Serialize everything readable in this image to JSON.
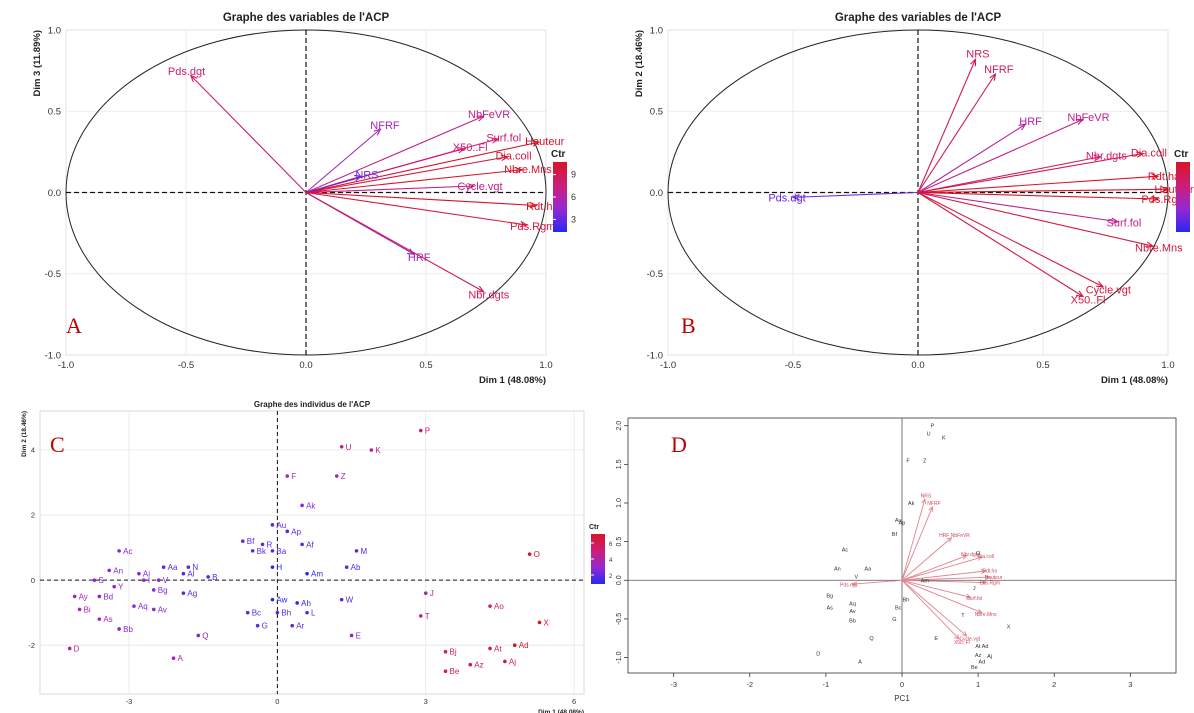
{
  "chart_data": [
    {
      "panel": "A",
      "type": "scatter",
      "subtype": "pca-variable-correlation-circle",
      "title": "Graphe des variables de l'ACP",
      "xlabel": "Dim 1 (48.08%)",
      "ylabel": "Dim 3 (11.89%)",
      "xlim": [
        -1.0,
        1.0
      ],
      "ylim": [
        -1.0,
        1.0
      ],
      "xticks": [
        "-1.0",
        "-0.5",
        "0.0",
        "0.5",
        "1.0"
      ],
      "yticks": [
        "-1.0",
        "-0.5",
        "0.0",
        "0.5",
        "1.0"
      ],
      "grid": true,
      "legend": {
        "title": "Ctr",
        "ticks": [
          "9",
          "6",
          "3"
        ],
        "placement": "right"
      },
      "points": [
        {
          "label": "Pds.dgt",
          "x": -0.48,
          "y": 0.72,
          "ctr": 7
        },
        {
          "label": "NbFeVR",
          "x": 0.74,
          "y": 0.47,
          "ctr": 6
        },
        {
          "label": "NFRF",
          "x": 0.31,
          "y": 0.39,
          "ctr": 4
        },
        {
          "label": "Surf.fol",
          "x": 0.8,
          "y": 0.33,
          "ctr": 7
        },
        {
          "label": "X50..Fl",
          "x": 0.66,
          "y": 0.27,
          "ctr": 7
        },
        {
          "label": "Hauteur",
          "x": 0.97,
          "y": 0.31,
          "ctr": 10
        },
        {
          "label": "Dia.coll",
          "x": 0.84,
          "y": 0.22,
          "ctr": 9
        },
        {
          "label": "NRS",
          "x": 0.23,
          "y": 0.1,
          "ctr": 2
        },
        {
          "label": "Nbre.Mns",
          "x": 0.9,
          "y": 0.14,
          "ctr": 10
        },
        {
          "label": "Cycle.vgt",
          "x": 0.7,
          "y": 0.04,
          "ctr": 6
        },
        {
          "label": "Rdt.ha",
          "x": 0.96,
          "y": -0.08,
          "ctr": 10
        },
        {
          "label": "Pds.Rgm",
          "x": 0.92,
          "y": -0.2,
          "ctr": 9
        },
        {
          "label": "HRF",
          "x": 0.45,
          "y": -0.38,
          "ctr": 4
        },
        {
          "label": "Nbr.dgts",
          "x": 0.74,
          "y": -0.61,
          "ctr": 8
        }
      ]
    },
    {
      "panel": "B",
      "type": "scatter",
      "subtype": "pca-variable-correlation-circle",
      "title": "Graphe des variables de l'ACP",
      "xlabel": "Dim 1 (48.08%)",
      "ylabel": "Dim 2 (18.46%)",
      "xlim": [
        -1.0,
        1.0
      ],
      "ylim": [
        -1.0,
        1.0
      ],
      "xticks": [
        "-1.0",
        "-0.5",
        "0.0",
        "0.5",
        "1.0"
      ],
      "yticks": [
        "-1.0",
        "-0.5",
        "0.0",
        "0.5",
        "1.0"
      ],
      "grid": true,
      "legend": {
        "title": "Ctr",
        "placement": "right"
      },
      "points": [
        {
          "label": "NRS",
          "x": 0.23,
          "y": 0.82,
          "ctr": 8
        },
        {
          "label": "NFRF",
          "x": 0.31,
          "y": 0.73,
          "ctr": 8
        },
        {
          "label": "HRF",
          "x": 0.43,
          "y": 0.42,
          "ctr": 5
        },
        {
          "label": "NbFeVR",
          "x": 0.66,
          "y": 0.45,
          "ctr": 6
        },
        {
          "label": "Nbr.dgts",
          "x": 0.73,
          "y": 0.22,
          "ctr": 7
        },
        {
          "label": "Dia.coll",
          "x": 0.9,
          "y": 0.24,
          "ctr": 9
        },
        {
          "label": "Rdt.ha",
          "x": 0.96,
          "y": 0.1,
          "ctr": 10
        },
        {
          "label": "Hauteur",
          "x": 1.0,
          "y": 0.02,
          "ctr": 10
        },
        {
          "label": "Pds.Rgm",
          "x": 0.96,
          "y": -0.04,
          "ctr": 10
        },
        {
          "label": "Pds.dgt",
          "x": -0.5,
          "y": -0.03,
          "ctr": 2
        },
        {
          "label": "Surf.fol",
          "x": 0.8,
          "y": -0.18,
          "ctr": 6
        },
        {
          "label": "Nbre.Mns",
          "x": 0.94,
          "y": -0.33,
          "ctr": 9
        },
        {
          "label": "Cycle.vgt",
          "x": 0.74,
          "y": -0.58,
          "ctr": 9
        },
        {
          "label": "X50..Fl",
          "x": 0.66,
          "y": -0.64,
          "ctr": 9
        }
      ]
    },
    {
      "panel": "C",
      "type": "scatter",
      "subtype": "pca-individuals",
      "title": "Graphe des individus de l'ACP",
      "xlabel": "Dim 1 (48.08%)",
      "ylabel": "Dim 2 (18.46%)",
      "xlim": [
        -4.8,
        6.2
      ],
      "ylim": [
        -3.5,
        5.2
      ],
      "xticks": [
        "-3",
        "0",
        "3",
        "6"
      ],
      "yticks": [
        "-2",
        "0",
        "2",
        "4"
      ],
      "grid": true,
      "legend": {
        "title": "Ctr",
        "ticks": [
          "6",
          "4",
          "2"
        ],
        "placement": "right"
      },
      "points": [
        {
          "label": "P",
          "x": 2.9,
          "y": 4.6,
          "ctr": 5
        },
        {
          "label": "U",
          "x": 1.3,
          "y": 4.1,
          "ctr": 4
        },
        {
          "label": "K",
          "x": 1.9,
          "y": 4.0,
          "ctr": 4
        },
        {
          "label": "F",
          "x": 0.2,
          "y": 3.2,
          "ctr": 3
        },
        {
          "label": "Z",
          "x": 1.2,
          "y": 3.2,
          "ctr": 3
        },
        {
          "label": "Ak",
          "x": 0.5,
          "y": 2.3,
          "ctr": 2
        },
        {
          "label": "Au",
          "x": -0.1,
          "y": 1.7,
          "ctr": 1
        },
        {
          "label": "Ap",
          "x": 0.2,
          "y": 1.5,
          "ctr": 1
        },
        {
          "label": "Bf",
          "x": -0.7,
          "y": 1.2,
          "ctr": 1
        },
        {
          "label": "R",
          "x": -0.3,
          "y": 1.1,
          "ctr": 1
        },
        {
          "label": "Af",
          "x": 0.5,
          "y": 1.1,
          "ctr": 1
        },
        {
          "label": "Bk",
          "x": -0.5,
          "y": 0.9,
          "ctr": 1
        },
        {
          "label": "Ba",
          "x": -0.1,
          "y": 0.9,
          "ctr": 1
        },
        {
          "label": "M",
          "x": 1.6,
          "y": 0.9,
          "ctr": 1
        },
        {
          "label": "H",
          "x": -0.1,
          "y": 0.4,
          "ctr": 0
        },
        {
          "label": "Ab",
          "x": 1.4,
          "y": 0.4,
          "ctr": 1
        },
        {
          "label": "Am",
          "x": 0.6,
          "y": 0.2,
          "ctr": 0
        },
        {
          "label": "Ac",
          "x": -3.2,
          "y": 0.9,
          "ctr": 2
        },
        {
          "label": "An",
          "x": -3.4,
          "y": 0.3,
          "ctr": 2
        },
        {
          "label": "Ai",
          "x": -2.8,
          "y": 0.2,
          "ctr": 2
        },
        {
          "label": "Aa",
          "x": -2.3,
          "y": 0.4,
          "ctr": 1
        },
        {
          "label": "N",
          "x": -1.8,
          "y": 0.4,
          "ctr": 1
        },
        {
          "label": "Al",
          "x": -1.9,
          "y": 0.2,
          "ctr": 1
        },
        {
          "label": "B",
          "x": -1.4,
          "y": 0.1,
          "ctr": 1
        },
        {
          "label": "S",
          "x": -3.7,
          "y": 0.0,
          "ctr": 2
        },
        {
          "label": "I",
          "x": -2.7,
          "y": 0.0,
          "ctr": 2
        },
        {
          "label": "V",
          "x": -2.4,
          "y": 0.0,
          "ctr": 2
        },
        {
          "label": "Y",
          "x": -3.3,
          "y": -0.2,
          "ctr": 2
        },
        {
          "label": "Bg",
          "x": -2.5,
          "y": -0.3,
          "ctr": 2
        },
        {
          "label": "Ag",
          "x": -1.9,
          "y": -0.4,
          "ctr": 1
        },
        {
          "label": "Ay",
          "x": -4.1,
          "y": -0.5,
          "ctr": 3
        },
        {
          "label": "Bd",
          "x": -3.6,
          "y": -0.5,
          "ctr": 2
        },
        {
          "label": "Aq",
          "x": -2.9,
          "y": -0.8,
          "ctr": 2
        },
        {
          "label": "Av",
          "x": -2.5,
          "y": -0.9,
          "ctr": 2
        },
        {
          "label": "Bi",
          "x": -4.0,
          "y": -0.9,
          "ctr": 3
        },
        {
          "label": "As",
          "x": -3.6,
          "y": -1.2,
          "ctr": 3
        },
        {
          "label": "Bb",
          "x": -3.2,
          "y": -1.5,
          "ctr": 2
        },
        {
          "label": "Q",
          "x": -1.6,
          "y": -1.7,
          "ctr": 2
        },
        {
          "label": "D",
          "x": -4.2,
          "y": -2.1,
          "ctr": 4
        },
        {
          "label": "A",
          "x": -2.1,
          "y": -2.4,
          "ctr": 3
        },
        {
          "label": "Aw",
          "x": -0.1,
          "y": -0.6,
          "ctr": 0
        },
        {
          "label": "Ah",
          "x": 0.4,
          "y": -0.7,
          "ctr": 0
        },
        {
          "label": "W",
          "x": 1.3,
          "y": -0.6,
          "ctr": 1
        },
        {
          "label": "Bc",
          "x": -0.6,
          "y": -1.0,
          "ctr": 1
        },
        {
          "label": "Bh",
          "x": 0.0,
          "y": -1.0,
          "ctr": 1
        },
        {
          "label": "L",
          "x": 0.6,
          "y": -1.0,
          "ctr": 1
        },
        {
          "label": "G",
          "x": -0.4,
          "y": -1.4,
          "ctr": 1
        },
        {
          "label": "Ar",
          "x": 0.3,
          "y": -1.4,
          "ctr": 1
        },
        {
          "label": "E",
          "x": 1.5,
          "y": -1.7,
          "ctr": 2
        },
        {
          "label": "O",
          "x": 5.1,
          "y": 0.8,
          "ctr": 7
        },
        {
          "label": "J",
          "x": 3.0,
          "y": -0.4,
          "ctr": 4
        },
        {
          "label": "Ao",
          "x": 4.3,
          "y": -0.8,
          "ctr": 5
        },
        {
          "label": "T",
          "x": 2.9,
          "y": -1.1,
          "ctr": 4
        },
        {
          "label": "X",
          "x": 5.3,
          "y": -1.3,
          "ctr": 7
        },
        {
          "label": "Bj",
          "x": 3.4,
          "y": -2.2,
          "ctr": 5
        },
        {
          "label": "At",
          "x": 4.3,
          "y": -2.1,
          "ctr": 6
        },
        {
          "label": "Ad",
          "x": 4.8,
          "y": -2.0,
          "ctr": 7
        },
        {
          "label": "Az",
          "x": 3.9,
          "y": -2.6,
          "ctr": 6
        },
        {
          "label": "Aj",
          "x": 4.6,
          "y": -2.5,
          "ctr": 6
        },
        {
          "label": "Be",
          "x": 3.4,
          "y": -2.8,
          "ctr": 5
        }
      ]
    },
    {
      "panel": "D",
      "type": "scatter",
      "subtype": "pca-biplot",
      "xlabel": "PC1",
      "ylabel": "",
      "xlim": [
        -3.6,
        3.6
      ],
      "ylim": [
        -1.2,
        2.1
      ],
      "xticks": [
        "-3",
        "-2",
        "-1",
        "0",
        "1",
        "2",
        "3"
      ],
      "yticks": [
        "-1.0",
        "-0.5",
        "0.0",
        "0.5",
        "1.0",
        "1.5",
        "2.0"
      ],
      "grid": false,
      "individuals": [
        {
          "label": "P",
          "x": 0.4,
          "y": 2.0
        },
        {
          "label": "U",
          "x": 0.35,
          "y": 1.9
        },
        {
          "label": "K",
          "x": 0.55,
          "y": 1.85
        },
        {
          "label": "F",
          "x": 0.08,
          "y": 1.55
        },
        {
          "label": "Z",
          "x": 0.3,
          "y": 1.55
        },
        {
          "label": "Ak",
          "x": 0.12,
          "y": 1.0
        },
        {
          "label": "Au",
          "x": -0.05,
          "y": 0.78
        },
        {
          "label": "Ap",
          "x": 0.0,
          "y": 0.75
        },
        {
          "label": "Bf",
          "x": -0.1,
          "y": 0.6
        },
        {
          "label": "Ac",
          "x": -0.75,
          "y": 0.4
        },
        {
          "label": "An",
          "x": -0.85,
          "y": 0.15
        },
        {
          "label": "Aa",
          "x": -0.45,
          "y": 0.15
        },
        {
          "label": "V",
          "x": -0.6,
          "y": 0.05
        },
        {
          "label": "Bg",
          "x": -0.95,
          "y": -0.2
        },
        {
          "label": "Aq",
          "x": -0.65,
          "y": -0.3
        },
        {
          "label": "Av",
          "x": -0.65,
          "y": -0.4
        },
        {
          "label": "Bb",
          "x": -0.65,
          "y": -0.52
        },
        {
          "label": "As",
          "x": -0.95,
          "y": -0.35
        },
        {
          "label": "Q",
          "x": -0.4,
          "y": -0.75
        },
        {
          "label": "D",
          "x": -1.1,
          "y": -0.95
        },
        {
          "label": "A",
          "x": -0.55,
          "y": -1.05
        },
        {
          "label": "Am",
          "x": 0.3,
          "y": 0.0
        },
        {
          "label": "Bh",
          "x": 0.05,
          "y": -0.25
        },
        {
          "label": "Bc",
          "x": -0.05,
          "y": -0.35
        },
        {
          "label": "G",
          "x": -0.1,
          "y": -0.5
        },
        {
          "label": "O",
          "x": 1.0,
          "y": 0.35
        },
        {
          "label": "J",
          "x": 0.95,
          "y": -0.1
        },
        {
          "label": "T",
          "x": 0.8,
          "y": -0.45
        },
        {
          "label": "X",
          "x": 1.4,
          "y": -0.6
        },
        {
          "label": "E",
          "x": 0.45,
          "y": -0.75
        },
        {
          "label": "At Ad",
          "x": 1.05,
          "y": -0.85
        },
        {
          "label": "Aj",
          "x": 1.15,
          "y": -0.98
        },
        {
          "label": "Az",
          "x": 1.0,
          "y": -0.97
        },
        {
          "label": "Ad",
          "x": 1.05,
          "y": -1.05
        },
        {
          "label": "Be",
          "x": 0.95,
          "y": -1.12
        }
      ],
      "variables": [
        {
          "label": "NRS",
          "x": 0.3,
          "y": 1.05
        },
        {
          "label": "NFRF",
          "x": 0.4,
          "y": 0.95
        },
        {
          "label": "HRF NbFeVR",
          "x": 0.65,
          "y": 0.55
        },
        {
          "label": "Nbr.dgts",
          "x": 0.85,
          "y": 0.32
        },
        {
          "label": "Dia.coll",
          "x": 1.05,
          "y": 0.3
        },
        {
          "label": "Rdt.ha",
          "x": 1.1,
          "y": 0.12
        },
        {
          "label": "Hauteur",
          "x": 1.15,
          "y": 0.04
        },
        {
          "label": "Pds.Rgm",
          "x": 1.1,
          "y": -0.03
        },
        {
          "label": "Pds.dgt",
          "x": -0.65,
          "y": -0.05
        },
        {
          "label": "Surf.fol",
          "x": 0.9,
          "y": -0.22
        },
        {
          "label": "Nbre.Mns",
          "x": 1.05,
          "y": -0.42
        },
        {
          "label": "Cycle.vgt",
          "x": 0.85,
          "y": -0.72
        },
        {
          "label": "X50..Fl",
          "x": 0.75,
          "y": -0.76
        }
      ]
    }
  ]
}
